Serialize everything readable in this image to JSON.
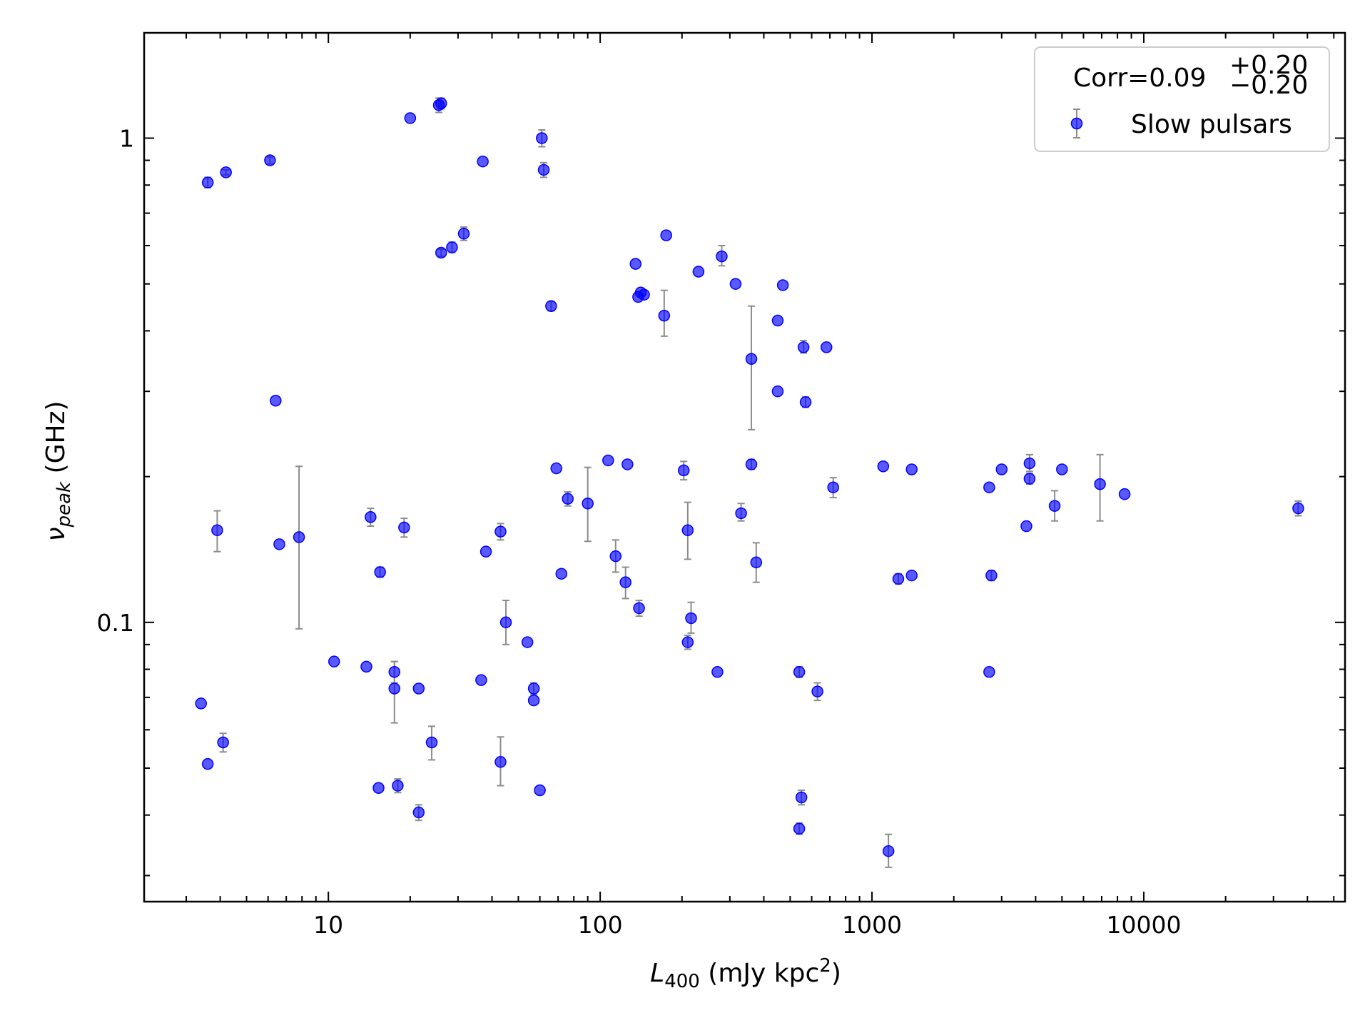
{
  "chart_data": {
    "type": "scatter",
    "title": "",
    "xlabel": {
      "main": "L",
      "sub": "400",
      "unit_pre": " (mJy kpc",
      "sup": "2",
      "unit_post": ")"
    },
    "ylabel": {
      "main": "ν",
      "sub": "peak",
      "unit": " (GHz)"
    },
    "xscale": "log",
    "yscale": "log",
    "xlim": [
      2.1,
      55000
    ],
    "ylim": [
      0.0265,
      1.65
    ],
    "x_tick_labels": [
      {
        "value": 10,
        "label": "10"
      },
      {
        "value": 100,
        "label": "100"
      },
      {
        "value": 1000,
        "label": "1000"
      },
      {
        "value": 10000,
        "label": "10000"
      }
    ],
    "y_tick_labels": [
      {
        "value": 0.1,
        "label": "0.1"
      },
      {
        "value": 1,
        "label": "1"
      }
    ],
    "legend": {
      "position": "top-right",
      "corr_prefix": "Corr=0.09",
      "corr_upper": "+0.20",
      "corr_lower": "−0.20",
      "series_label": "Slow pulsars"
    },
    "colors": {
      "marker": "#0000ff",
      "errorbar": "#8c8c8c"
    },
    "series": [
      {
        "name": "Slow pulsars",
        "points": [
          {
            "x": 3.6,
            "y": 0.81,
            "lo": 0.79,
            "hi": 0.83
          },
          {
            "x": 4.2,
            "y": 0.85,
            "lo": 0.84,
            "hi": 0.86
          },
          {
            "x": 6.1,
            "y": 0.9,
            "lo": 0.885,
            "hi": 0.915
          },
          {
            "x": 20,
            "y": 1.1
          },
          {
            "x": 25.5,
            "y": 1.17,
            "lo": 1.13,
            "hi": 1.21
          },
          {
            "x": 26,
            "y": 1.18,
            "lo": 1.15,
            "hi": 1.21
          },
          {
            "x": 37,
            "y": 0.895
          },
          {
            "x": 61,
            "y": 1.0,
            "lo": 0.96,
            "hi": 1.04
          },
          {
            "x": 62,
            "y": 0.86,
            "lo": 0.83,
            "hi": 0.89
          },
          {
            "x": 26,
            "y": 0.58,
            "lo": 0.57,
            "hi": 0.59
          },
          {
            "x": 28.5,
            "y": 0.595,
            "lo": 0.58,
            "hi": 0.61
          },
          {
            "x": 31.5,
            "y": 0.635,
            "lo": 0.615,
            "hi": 0.655
          },
          {
            "x": 66,
            "y": 0.45,
            "lo": 0.44,
            "hi": 0.46
          },
          {
            "x": 135,
            "y": 0.55
          },
          {
            "x": 138,
            "y": 0.47
          },
          {
            "x": 141,
            "y": 0.48
          },
          {
            "x": 145,
            "y": 0.475
          },
          {
            "x": 172,
            "y": 0.43,
            "lo": 0.39,
            "hi": 0.485
          },
          {
            "x": 175,
            "y": 0.63
          },
          {
            "x": 230,
            "y": 0.53
          },
          {
            "x": 280,
            "y": 0.57,
            "lo": 0.545,
            "hi": 0.6
          },
          {
            "x": 315,
            "y": 0.5
          },
          {
            "x": 360,
            "y": 0.35,
            "lo": 0.25,
            "hi": 0.45
          },
          {
            "x": 450,
            "y": 0.42
          },
          {
            "x": 470,
            "y": 0.497
          },
          {
            "x": 560,
            "y": 0.37,
            "lo": 0.36,
            "hi": 0.382
          },
          {
            "x": 680,
            "y": 0.37
          },
          {
            "x": 450,
            "y": 0.3
          },
          {
            "x": 570,
            "y": 0.285,
            "lo": 0.278,
            "hi": 0.292
          },
          {
            "x": 6.4,
            "y": 0.287
          },
          {
            "x": 3.9,
            "y": 0.155,
            "lo": 0.14,
            "hi": 0.17
          },
          {
            "x": 6.6,
            "y": 0.145
          },
          {
            "x": 7.8,
            "y": 0.15,
            "lo": 0.097,
            "hi": 0.21
          },
          {
            "x": 14.3,
            "y": 0.165,
            "lo": 0.158,
            "hi": 0.172
          },
          {
            "x": 19,
            "y": 0.157,
            "lo": 0.15,
            "hi": 0.164
          },
          {
            "x": 15.5,
            "y": 0.127,
            "lo": 0.124,
            "hi": 0.13
          },
          {
            "x": 38,
            "y": 0.14
          },
          {
            "x": 43,
            "y": 0.154,
            "lo": 0.148,
            "hi": 0.16
          },
          {
            "x": 69,
            "y": 0.208
          },
          {
            "x": 76,
            "y": 0.18,
            "lo": 0.174,
            "hi": 0.186
          },
          {
            "x": 90,
            "y": 0.176,
            "lo": 0.147,
            "hi": 0.209
          },
          {
            "x": 72,
            "y": 0.126
          },
          {
            "x": 107,
            "y": 0.216
          },
          {
            "x": 126,
            "y": 0.212
          },
          {
            "x": 114,
            "y": 0.137,
            "lo": 0.127,
            "hi": 0.148
          },
          {
            "x": 124,
            "y": 0.121,
            "lo": 0.112,
            "hi": 0.13
          },
          {
            "x": 139,
            "y": 0.107,
            "lo": 0.103,
            "hi": 0.111
          },
          {
            "x": 203,
            "y": 0.206,
            "lo": 0.197,
            "hi": 0.215
          },
          {
            "x": 210,
            "y": 0.155,
            "lo": 0.135,
            "hi": 0.177
          },
          {
            "x": 216,
            "y": 0.102,
            "lo": 0.095,
            "hi": 0.11
          },
          {
            "x": 210,
            "y": 0.091,
            "lo": 0.088,
            "hi": 0.094
          },
          {
            "x": 330,
            "y": 0.168,
            "lo": 0.162,
            "hi": 0.176
          },
          {
            "x": 360,
            "y": 0.212,
            "lo": 0.207,
            "hi": 0.217
          },
          {
            "x": 375,
            "y": 0.133,
            "lo": 0.121,
            "hi": 0.146
          },
          {
            "x": 720,
            "y": 0.19,
            "lo": 0.181,
            "hi": 0.199
          },
          {
            "x": 1100,
            "y": 0.21
          },
          {
            "x": 1400,
            "y": 0.207
          },
          {
            "x": 1250,
            "y": 0.123,
            "lo": 0.12,
            "hi": 0.126
          },
          {
            "x": 1400,
            "y": 0.125
          },
          {
            "x": 2700,
            "y": 0.19
          },
          {
            "x": 3000,
            "y": 0.207
          },
          {
            "x": 3800,
            "y": 0.213,
            "lo": 0.205,
            "hi": 0.222
          },
          {
            "x": 3800,
            "y": 0.198,
            "lo": 0.193,
            "hi": 0.203
          },
          {
            "x": 3700,
            "y": 0.158
          },
          {
            "x": 2750,
            "y": 0.125,
            "lo": 0.122,
            "hi": 0.128
          },
          {
            "x": 4700,
            "y": 0.174,
            "lo": 0.162,
            "hi": 0.187
          },
          {
            "x": 5000,
            "y": 0.207
          },
          {
            "x": 6900,
            "y": 0.193,
            "lo": 0.162,
            "hi": 0.222
          },
          {
            "x": 8500,
            "y": 0.184
          },
          {
            "x": 37000,
            "y": 0.172,
            "lo": 0.166,
            "hi": 0.178
          },
          {
            "x": 10.5,
            "y": 0.083
          },
          {
            "x": 13.8,
            "y": 0.081
          },
          {
            "x": 17.5,
            "y": 0.079,
            "lo": 0.075,
            "hi": 0.083
          },
          {
            "x": 17.5,
            "y": 0.073,
            "lo": 0.062,
            "hi": 0.083
          },
          {
            "x": 21.5,
            "y": 0.073
          },
          {
            "x": 36.5,
            "y": 0.076
          },
          {
            "x": 45,
            "y": 0.1,
            "lo": 0.09,
            "hi": 0.111
          },
          {
            "x": 54,
            "y": 0.091
          },
          {
            "x": 57,
            "y": 0.073,
            "lo": 0.071,
            "hi": 0.075
          },
          {
            "x": 57,
            "y": 0.069
          },
          {
            "x": 24,
            "y": 0.0565,
            "lo": 0.052,
            "hi": 0.061
          },
          {
            "x": 43,
            "y": 0.0515,
            "lo": 0.046,
            "hi": 0.058
          },
          {
            "x": 15.3,
            "y": 0.0455
          },
          {
            "x": 18,
            "y": 0.046,
            "lo": 0.0445,
            "hi": 0.0475
          },
          {
            "x": 21.5,
            "y": 0.0405,
            "lo": 0.039,
            "hi": 0.042
          },
          {
            "x": 60,
            "y": 0.045
          },
          {
            "x": 3.4,
            "y": 0.068
          },
          {
            "x": 3.6,
            "y": 0.051
          },
          {
            "x": 4.1,
            "y": 0.0565,
            "lo": 0.054,
            "hi": 0.059
          },
          {
            "x": 270,
            "y": 0.079
          },
          {
            "x": 540,
            "y": 0.079,
            "lo": 0.077,
            "hi": 0.081
          },
          {
            "x": 630,
            "y": 0.072,
            "lo": 0.069,
            "hi": 0.075
          },
          {
            "x": 2700,
            "y": 0.079
          },
          {
            "x": 550,
            "y": 0.0435,
            "lo": 0.042,
            "hi": 0.045
          },
          {
            "x": 540,
            "y": 0.0375,
            "lo": 0.0365,
            "hi": 0.0385
          },
          {
            "x": 1150,
            "y": 0.0337,
            "lo": 0.0312,
            "hi": 0.0365
          }
        ]
      }
    ]
  }
}
